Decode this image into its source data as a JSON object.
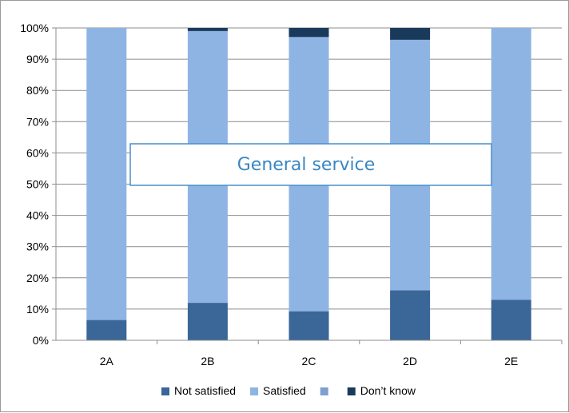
{
  "chart_data": {
    "type": "bar",
    "stacked": true,
    "normalized_percent": true,
    "categories": [
      "2A",
      "2B",
      "2C",
      "2D",
      "2E"
    ],
    "series": [
      {
        "name": "Not satisfied",
        "values": [
          6.5,
          12,
          9.3,
          16,
          13
        ]
      },
      {
        "name": "Satisfied",
        "values": [
          93.5,
          87,
          87.8,
          80.2,
          87
        ]
      },
      {
        "name": "",
        "values": [
          0,
          0,
          0,
          0,
          0
        ]
      },
      {
        "name": "Don’t know",
        "values": [
          0,
          1,
          2.9,
          3.8,
          0
        ]
      }
    ],
    "colors": [
      "#3a6698",
      "#8eb4e3",
      "#7f9fcf",
      "#1a3a5c"
    ],
    "y_ticks": [
      "0%",
      "10%",
      "20%",
      "30%",
      "40%",
      "50%",
      "60%",
      "70%",
      "80%",
      "90%",
      "100%"
    ],
    "ylim": [
      0,
      100
    ],
    "grid": "horizontal",
    "legend": "bottom",
    "annotation": "General service"
  }
}
